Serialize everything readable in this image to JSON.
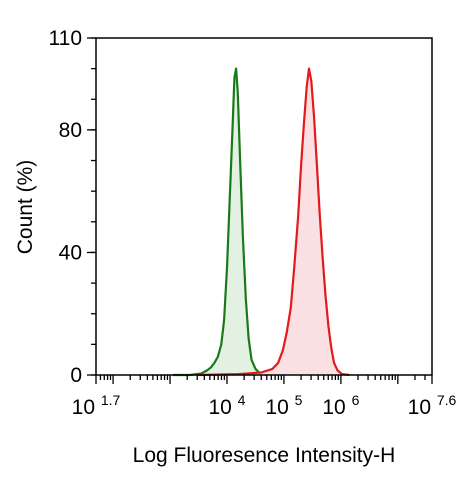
{
  "chart_data": {
    "type": "area",
    "xlabel": "Log Fluoresence Intensity-H",
    "ylabel": "Count  (%)",
    "xscale": "log",
    "xlim": [
      1.7,
      7.6
    ],
    "ylim": [
      0,
      110
    ],
    "x_ticks": [
      {
        "base": "10",
        "exp": "1.7",
        "value": 1.7
      },
      {
        "base": "10",
        "exp": "4",
        "value": 4
      },
      {
        "base": "10",
        "exp": "5",
        "value": 5
      },
      {
        "base": "10",
        "exp": "6",
        "value": 6
      },
      {
        "base": "10",
        "exp": "7.6",
        "value": 7.6
      }
    ],
    "y_ticks": [
      {
        "label": "0",
        "value": 0
      },
      {
        "label": "40",
        "value": 40
      },
      {
        "label": "80",
        "value": 80
      },
      {
        "label": "110",
        "value": 110
      }
    ],
    "grid": false,
    "legend": "none",
    "series": [
      {
        "color": "#1a7a1a",
        "fill": "#e3f1e3",
        "points": [
          [
            3.05,
            0
          ],
          [
            3.35,
            0
          ],
          [
            3.55,
            0.5
          ],
          [
            3.65,
            1.5
          ],
          [
            3.72,
            2.5
          ],
          [
            3.78,
            4
          ],
          [
            3.84,
            6
          ],
          [
            3.9,
            10
          ],
          [
            3.95,
            18
          ],
          [
            4.0,
            35
          ],
          [
            4.05,
            58
          ],
          [
            4.1,
            82
          ],
          [
            4.13,
            97
          ],
          [
            4.16,
            100
          ],
          [
            4.19,
            92
          ],
          [
            4.23,
            70
          ],
          [
            4.28,
            45
          ],
          [
            4.33,
            25
          ],
          [
            4.38,
            12
          ],
          [
            4.43,
            5
          ],
          [
            4.5,
            2
          ],
          [
            4.58,
            0.5
          ],
          [
            4.7,
            0
          ]
        ]
      },
      {
        "color": "#e31a1a",
        "fill": "#fbe0e3",
        "points": [
          [
            3.5,
            0
          ],
          [
            4.2,
            0.3
          ],
          [
            4.6,
            0.8
          ],
          [
            4.8,
            2
          ],
          [
            4.9,
            4
          ],
          [
            4.98,
            8
          ],
          [
            5.05,
            14
          ],
          [
            5.12,
            22
          ],
          [
            5.18,
            35
          ],
          [
            5.25,
            52
          ],
          [
            5.3,
            68
          ],
          [
            5.35,
            82
          ],
          [
            5.4,
            94
          ],
          [
            5.44,
            100
          ],
          [
            5.48,
            96
          ],
          [
            5.53,
            84
          ],
          [
            5.58,
            68
          ],
          [
            5.63,
            52
          ],
          [
            5.68,
            38
          ],
          [
            5.73,
            26
          ],
          [
            5.78,
            16
          ],
          [
            5.83,
            9
          ],
          [
            5.88,
            4
          ],
          [
            5.94,
            1.5
          ],
          [
            6.02,
            0.3
          ],
          [
            6.15,
            0
          ]
        ]
      }
    ]
  }
}
